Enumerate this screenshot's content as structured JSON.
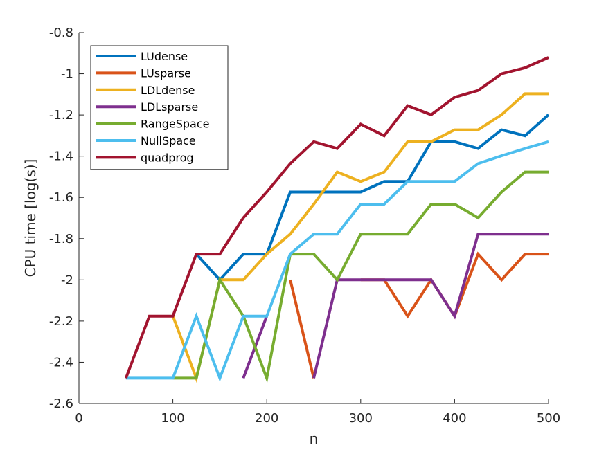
{
  "chart_data": {
    "type": "line",
    "title": "",
    "xlabel": "n",
    "ylabel": "CPU time [log(s)]",
    "xlim": [
      0,
      500
    ],
    "ylim": [
      -2.6,
      -0.8
    ],
    "xticks": [
      0,
      100,
      200,
      300,
      400,
      500
    ],
    "xtick_labels": [
      "0",
      "100",
      "200",
      "300",
      "400",
      "500"
    ],
    "yticks": [
      -2.6,
      -2.4,
      -2.2,
      -2.0,
      -1.8,
      -1.6,
      -1.4,
      -1.2,
      -1.0,
      -0.8
    ],
    "ytick_labels": [
      "-2.6",
      "-2.4",
      "-2.2",
      "-2",
      "-1.8",
      "-1.6",
      "-1.4",
      "-1.2",
      "-1",
      "-0.8"
    ],
    "grid": false,
    "legend_position": "top-left",
    "series": [
      {
        "name": "LUdense",
        "color": "#0072BD",
        "points": [
          [
            125,
            -1.875
          ],
          [
            150,
            -2.0
          ],
          [
            175,
            -1.875
          ],
          [
            200,
            -1.875
          ],
          [
            225,
            -1.574
          ],
          [
            250,
            -1.574
          ],
          [
            275,
            -1.574
          ],
          [
            300,
            -1.574
          ],
          [
            325,
            -1.523
          ],
          [
            350,
            -1.523
          ],
          [
            375,
            -1.33
          ],
          [
            400,
            -1.33
          ],
          [
            425,
            -1.363
          ],
          [
            450,
            -1.272
          ],
          [
            475,
            -1.301
          ],
          [
            500,
            -1.199
          ]
        ]
      },
      {
        "name": "LUsparse",
        "color": "#D95319",
        "segments": [
          [
            [
              225,
              -2.0
            ],
            [
              250,
              -2.477
            ]
          ],
          [
            [
              300,
              -2.0
            ],
            [
              325,
              -2.0
            ],
            [
              350,
              -2.176
            ],
            [
              375,
              -2.0
            ],
            [
              400,
              -2.176
            ],
            [
              425,
              -1.875
            ],
            [
              450,
              -2.0
            ],
            [
              475,
              -1.875
            ],
            [
              500,
              -1.875
            ]
          ]
        ]
      },
      {
        "name": "LDLdense",
        "color": "#EDB120",
        "points": [
          [
            100,
            -2.176
          ],
          [
            125,
            -2.477
          ],
          [
            150,
            -2.0
          ],
          [
            175,
            -2.0
          ],
          [
            200,
            -1.875
          ],
          [
            225,
            -1.778
          ],
          [
            250,
            -1.633
          ],
          [
            275,
            -1.477
          ],
          [
            300,
            -1.523
          ],
          [
            325,
            -1.477
          ],
          [
            350,
            -1.33
          ],
          [
            375,
            -1.33
          ],
          [
            400,
            -1.272
          ],
          [
            425,
            -1.272
          ],
          [
            450,
            -1.199
          ],
          [
            475,
            -1.097
          ],
          [
            500,
            -1.097
          ]
        ]
      },
      {
        "name": "LDLsparse",
        "color": "#7E2F8E",
        "segments": [
          [
            [
              175,
              -2.477
            ],
            [
              200,
              -2.176
            ]
          ],
          [
            [
              250,
              -2.477
            ],
            [
              275,
              -2.0
            ],
            [
              300,
              -2.0
            ],
            [
              325,
              -2.0
            ],
            [
              350,
              -2.0
            ],
            [
              375,
              -2.0
            ],
            [
              400,
              -2.176
            ],
            [
              425,
              -1.778
            ],
            [
              450,
              -1.778
            ],
            [
              475,
              -1.778
            ],
            [
              500,
              -1.778
            ]
          ]
        ]
      },
      {
        "name": "RangeSpace",
        "color": "#77AC30",
        "points": [
          [
            100,
            -2.477
          ],
          [
            125,
            -2.477
          ],
          [
            150,
            -2.0
          ],
          [
            175,
            -2.176
          ],
          [
            200,
            -2.477
          ],
          [
            225,
            -1.875
          ],
          [
            250,
            -1.875
          ],
          [
            275,
            -2.0
          ],
          [
            300,
            -1.778
          ],
          [
            325,
            -1.778
          ],
          [
            350,
            -1.778
          ],
          [
            375,
            -1.633
          ],
          [
            400,
            -1.633
          ],
          [
            425,
            -1.699
          ],
          [
            450,
            -1.574
          ],
          [
            475,
            -1.477
          ],
          [
            500,
            -1.477
          ]
        ]
      },
      {
        "name": "NullSpace",
        "color": "#4DBEEE",
        "points": [
          [
            50,
            -2.477
          ],
          [
            75,
            -2.477
          ],
          [
            100,
            -2.477
          ],
          [
            125,
            -2.176
          ],
          [
            150,
            -2.477
          ],
          [
            175,
            -2.176
          ],
          [
            200,
            -2.176
          ],
          [
            225,
            -1.875
          ],
          [
            250,
            -1.778
          ],
          [
            275,
            -1.778
          ],
          [
            300,
            -1.633
          ],
          [
            325,
            -1.633
          ],
          [
            350,
            -1.523
          ],
          [
            375,
            -1.523
          ],
          [
            400,
            -1.523
          ],
          [
            425,
            -1.436
          ],
          [
            450,
            -1.398
          ],
          [
            475,
            -1.363
          ],
          [
            500,
            -1.33
          ]
        ]
      },
      {
        "name": "quadprog",
        "color": "#A2142F",
        "points": [
          [
            50,
            -2.477
          ],
          [
            75,
            -2.176
          ],
          [
            100,
            -2.176
          ],
          [
            125,
            -1.875
          ],
          [
            150,
            -1.875
          ],
          [
            175,
            -1.699
          ],
          [
            200,
            -1.574
          ],
          [
            225,
            -1.436
          ],
          [
            250,
            -1.33
          ],
          [
            275,
            -1.363
          ],
          [
            300,
            -1.245
          ],
          [
            325,
            -1.301
          ],
          [
            350,
            -1.155
          ],
          [
            375,
            -1.199
          ],
          [
            400,
            -1.114
          ],
          [
            425,
            -1.081
          ],
          [
            450,
            -1.0
          ],
          [
            475,
            -0.971
          ],
          [
            500,
            -0.921
          ]
        ]
      }
    ]
  }
}
